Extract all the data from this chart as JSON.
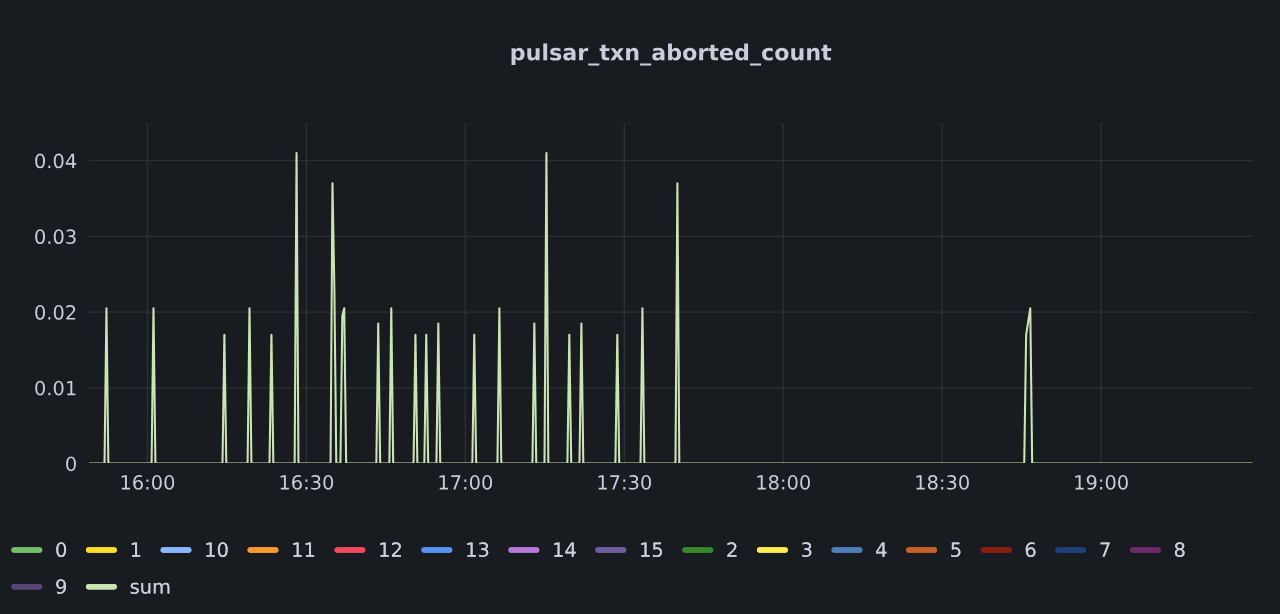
{
  "chart_data": {
    "type": "line",
    "title": "pulsar_txn_aborted_count",
    "x": [
      15.814,
      15.865,
      15.871,
      15.877,
      16.013,
      16.019,
      16.025,
      16.236,
      16.242,
      16.248,
      16.315,
      16.321,
      16.327,
      16.384,
      16.39,
      16.396,
      16.463,
      16.469,
      16.475,
      16.576,
      16.582,
      16.588,
      16.594,
      16.607,
      16.613,
      16.619,
      16.625,
      16.72,
      16.726,
      16.732,
      16.761,
      16.767,
      16.773,
      16.837,
      16.843,
      16.849,
      16.871,
      16.877,
      16.883,
      16.909,
      16.915,
      16.921,
      17.022,
      17.028,
      17.034,
      17.101,
      17.107,
      17.113,
      17.211,
      17.217,
      17.223,
      17.249,
      17.255,
      17.261,
      17.321,
      17.327,
      17.333,
      17.359,
      17.365,
      17.371,
      17.472,
      17.478,
      17.484,
      17.551,
      17.557,
      17.563,
      17.661,
      17.667,
      17.673,
      18.758,
      18.764,
      18.777,
      18.783,
      19.478
    ],
    "series": [
      {
        "name": "0",
        "color": "#73bf69",
        "values": [
          null,
          null,
          null,
          null,
          null,
          null,
          null,
          null,
          null,
          null,
          null,
          null,
          null,
          null,
          null,
          null,
          null,
          null,
          null,
          null,
          null,
          null,
          null,
          null,
          null,
          null,
          null,
          null,
          null,
          null,
          null,
          null,
          null,
          null,
          null,
          null,
          null,
          null,
          null,
          null,
          null,
          null,
          null,
          null,
          null,
          null,
          null,
          null,
          null,
          null,
          null,
          null,
          null,
          null,
          null,
          null,
          null,
          null,
          null,
          null,
          null,
          null,
          null,
          null,
          null,
          null,
          null,
          null,
          null,
          null,
          null,
          null,
          null,
          null
        ]
      },
      {
        "name": "1",
        "color": "#fade2a",
        "values": [
          null,
          null,
          null,
          null,
          null,
          null,
          null,
          null,
          null,
          null,
          null,
          null,
          null,
          null,
          null,
          null,
          null,
          null,
          null,
          null,
          null,
          null,
          null,
          null,
          null,
          null,
          null,
          null,
          null,
          null,
          null,
          null,
          null,
          null,
          null,
          null,
          null,
          null,
          null,
          null,
          null,
          null,
          null,
          null,
          null,
          null,
          null,
          null,
          null,
          null,
          null,
          null,
          null,
          null,
          null,
          null,
          null,
          null,
          null,
          null,
          null,
          null,
          null,
          null,
          null,
          null,
          null,
          null,
          null,
          null,
          null,
          null,
          null,
          null
        ]
      },
      {
        "name": "10",
        "color": "#8ab8ff",
        "values": [
          null,
          null,
          null,
          null,
          null,
          null,
          null,
          null,
          null,
          null,
          null,
          null,
          null,
          null,
          null,
          null,
          null,
          null,
          null,
          null,
          null,
          null,
          null,
          null,
          null,
          null,
          null,
          null,
          null,
          null,
          null,
          null,
          null,
          null,
          null,
          null,
          null,
          null,
          null,
          null,
          null,
          null,
          null,
          null,
          null,
          null,
          null,
          null,
          null,
          null,
          null,
          null,
          null,
          null,
          null,
          null,
          null,
          null,
          null,
          null,
          null,
          null,
          null,
          null,
          null,
          null,
          null,
          null,
          null,
          null,
          null,
          null,
          null,
          null
        ]
      },
      {
        "name": "11",
        "color": "#ff9830",
        "values": [
          null,
          null,
          null,
          null,
          null,
          null,
          null,
          null,
          null,
          null,
          null,
          null,
          null,
          null,
          null,
          null,
          null,
          null,
          null,
          null,
          null,
          null,
          null,
          null,
          null,
          null,
          null,
          null,
          null,
          null,
          null,
          null,
          null,
          null,
          null,
          null,
          null,
          null,
          null,
          null,
          null,
          null,
          null,
          null,
          null,
          null,
          null,
          null,
          null,
          null,
          null,
          null,
          null,
          null,
          null,
          null,
          null,
          null,
          null,
          null,
          null,
          null,
          null,
          null,
          null,
          null,
          null,
          null,
          null,
          null,
          null,
          null,
          null,
          null
        ]
      },
      {
        "name": "12",
        "color": "#f2495c",
        "values": [
          null,
          null,
          null,
          null,
          null,
          null,
          null,
          null,
          null,
          null,
          null,
          null,
          null,
          null,
          null,
          null,
          null,
          null,
          null,
          null,
          null,
          null,
          null,
          null,
          null,
          null,
          null,
          null,
          null,
          null,
          null,
          null,
          null,
          null,
          null,
          null,
          null,
          null,
          null,
          null,
          null,
          null,
          null,
          null,
          null,
          null,
          null,
          null,
          null,
          null,
          null,
          null,
          null,
          null,
          null,
          null,
          null,
          null,
          null,
          null,
          null,
          null,
          null,
          null,
          null,
          null,
          null,
          null,
          null,
          null,
          null,
          null,
          null,
          null
        ]
      },
      {
        "name": "13",
        "color": "#5794f2",
        "values": [
          null,
          null,
          null,
          null,
          null,
          null,
          null,
          null,
          null,
          null,
          null,
          null,
          null,
          null,
          null,
          null,
          null,
          null,
          null,
          null,
          null,
          null,
          null,
          null,
          null,
          null,
          null,
          null,
          null,
          null,
          null,
          null,
          null,
          null,
          null,
          null,
          null,
          null,
          null,
          null,
          null,
          null,
          null,
          null,
          null,
          null,
          null,
          null,
          null,
          null,
          null,
          null,
          null,
          null,
          null,
          null,
          null,
          null,
          null,
          null,
          null,
          null,
          null,
          null,
          null,
          null,
          null,
          null,
          null,
          null,
          null,
          null,
          null,
          null
        ]
      },
      {
        "name": "14",
        "color": "#b877d9",
        "values": [
          null,
          null,
          null,
          null,
          null,
          null,
          null,
          null,
          null,
          null,
          null,
          null,
          null,
          null,
          null,
          null,
          null,
          null,
          null,
          null,
          null,
          null,
          null,
          null,
          null,
          null,
          null,
          null,
          null,
          null,
          null,
          null,
          null,
          null,
          null,
          null,
          null,
          null,
          null,
          null,
          null,
          null,
          null,
          null,
          null,
          null,
          null,
          null,
          null,
          null,
          null,
          null,
          null,
          null,
          null,
          null,
          null,
          null,
          null,
          null,
          null,
          null,
          null,
          null,
          null,
          null,
          null,
          null,
          null,
          null,
          null,
          null,
          null,
          null
        ]
      },
      {
        "name": "15",
        "color": "#705da0",
        "values": [
          null,
          null,
          null,
          null,
          null,
          null,
          null,
          null,
          null,
          null,
          null,
          null,
          null,
          null,
          null,
          null,
          null,
          null,
          null,
          null,
          null,
          null,
          null,
          null,
          null,
          null,
          null,
          null,
          null,
          null,
          null,
          null,
          null,
          null,
          null,
          null,
          null,
          null,
          null,
          null,
          null,
          null,
          null,
          null,
          null,
          null,
          null,
          null,
          null,
          null,
          null,
          null,
          null,
          null,
          null,
          null,
          null,
          null,
          null,
          null,
          null,
          null,
          null,
          null,
          null,
          null,
          null,
          null,
          null,
          null,
          null,
          null,
          null,
          null
        ]
      },
      {
        "name": "2",
        "color": "#37872d",
        "values": [
          null,
          null,
          null,
          null,
          null,
          null,
          null,
          null,
          null,
          null,
          null,
          null,
          null,
          null,
          null,
          null,
          null,
          null,
          null,
          null,
          null,
          null,
          null,
          null,
          null,
          null,
          null,
          null,
          null,
          null,
          null,
          null,
          null,
          null,
          null,
          null,
          null,
          null,
          null,
          null,
          null,
          null,
          null,
          null,
          null,
          null,
          null,
          null,
          null,
          null,
          null,
          null,
          null,
          null,
          null,
          null,
          null,
          null,
          null,
          null,
          null,
          null,
          null,
          null,
          null,
          null,
          null,
          null,
          null,
          null,
          null,
          null,
          null,
          null
        ]
      },
      {
        "name": "3",
        "color": "#ffee52",
        "values": [
          null,
          null,
          null,
          null,
          null,
          null,
          null,
          null,
          null,
          null,
          null,
          null,
          null,
          null,
          null,
          null,
          null,
          null,
          null,
          null,
          null,
          null,
          null,
          null,
          null,
          null,
          null,
          null,
          null,
          null,
          null,
          null,
          null,
          null,
          null,
          null,
          null,
          null,
          null,
          null,
          null,
          null,
          null,
          null,
          null,
          null,
          null,
          null,
          null,
          null,
          null,
          null,
          null,
          null,
          null,
          null,
          null,
          null,
          null,
          null,
          null,
          null,
          null,
          null,
          null,
          null,
          null,
          null,
          null,
          null,
          null,
          null,
          null,
          null
        ]
      },
      {
        "name": "4",
        "color": "#4f7fb8",
        "values": [
          null,
          null,
          null,
          null,
          null,
          null,
          null,
          null,
          null,
          null,
          null,
          null,
          null,
          null,
          null,
          null,
          null,
          null,
          null,
          null,
          null,
          null,
          null,
          null,
          null,
          null,
          null,
          null,
          null,
          null,
          null,
          null,
          null,
          null,
          null,
          null,
          null,
          null,
          null,
          null,
          null,
          null,
          null,
          null,
          null,
          null,
          null,
          null,
          null,
          null,
          null,
          null,
          null,
          null,
          null,
          null,
          null,
          null,
          null,
          null,
          null,
          null,
          null,
          null,
          null,
          null,
          null,
          null,
          null,
          null,
          null,
          null,
          null,
          null
        ]
      },
      {
        "name": "5",
        "color": "#c4612a",
        "values": [
          null,
          null,
          null,
          null,
          null,
          null,
          null,
          null,
          null,
          null,
          null,
          null,
          null,
          null,
          null,
          null,
          null,
          null,
          null,
          null,
          null,
          null,
          null,
          null,
          null,
          null,
          null,
          null,
          null,
          null,
          null,
          null,
          null,
          null,
          null,
          null,
          null,
          null,
          null,
          null,
          null,
          null,
          null,
          null,
          null,
          null,
          null,
          null,
          null,
          null,
          null,
          null,
          null,
          null,
          null,
          null,
          null,
          null,
          null,
          null,
          null,
          null,
          null,
          null,
          null,
          null,
          null,
          null,
          null,
          null,
          null,
          null,
          null,
          null
        ]
      },
      {
        "name": "6",
        "color": "#8a1e12",
        "values": [
          null,
          null,
          null,
          null,
          null,
          null,
          null,
          null,
          null,
          null,
          null,
          null,
          null,
          null,
          null,
          null,
          null,
          null,
          null,
          null,
          null,
          null,
          null,
          null,
          null,
          null,
          null,
          null,
          null,
          null,
          null,
          null,
          null,
          null,
          null,
          null,
          null,
          null,
          null,
          null,
          null,
          null,
          null,
          null,
          null,
          null,
          null,
          null,
          null,
          null,
          null,
          null,
          null,
          null,
          null,
          null,
          null,
          null,
          null,
          null,
          null,
          null,
          null,
          null,
          null,
          null,
          null,
          null,
          null,
          null,
          null,
          null,
          null,
          null
        ]
      },
      {
        "name": "7",
        "color": "#1f3f7a",
        "values": [
          null,
          null,
          null,
          null,
          null,
          null,
          null,
          null,
          null,
          null,
          null,
          null,
          null,
          null,
          null,
          null,
          null,
          null,
          null,
          null,
          null,
          null,
          null,
          null,
          null,
          null,
          null,
          null,
          null,
          null,
          null,
          null,
          null,
          null,
          null,
          null,
          null,
          null,
          null,
          null,
          null,
          null,
          null,
          null,
          null,
          null,
          null,
          null,
          null,
          null,
          null,
          null,
          null,
          null,
          null,
          null,
          null,
          null,
          null,
          null,
          null,
          null,
          null,
          null,
          null,
          null,
          null,
          null,
          null,
          null,
          null,
          null,
          null,
          null
        ]
      },
      {
        "name": "8",
        "color": "#6e2a68",
        "values": [
          null,
          null,
          null,
          null,
          null,
          null,
          null,
          null,
          null,
          null,
          null,
          null,
          null,
          null,
          null,
          null,
          null,
          null,
          null,
          null,
          null,
          null,
          null,
          null,
          null,
          null,
          null,
          null,
          null,
          null,
          null,
          null,
          null,
          null,
          null,
          null,
          null,
          null,
          null,
          null,
          null,
          null,
          null,
          null,
          null,
          null,
          null,
          null,
          null,
          null,
          null,
          null,
          null,
          null,
          null,
          null,
          null,
          null,
          null,
          null,
          null,
          null,
          null,
          null,
          null,
          null,
          null,
          null,
          null,
          null,
          null,
          null,
          null,
          null
        ]
      },
      {
        "name": "9",
        "color": "#584477",
        "values": [
          null,
          null,
          null,
          null,
          null,
          null,
          null,
          null,
          null,
          null,
          null,
          null,
          null,
          null,
          null,
          null,
          null,
          null,
          null,
          null,
          null,
          null,
          null,
          null,
          null,
          null,
          null,
          null,
          null,
          null,
          null,
          null,
          null,
          null,
          null,
          null,
          null,
          null,
          null,
          null,
          null,
          null,
          null,
          null,
          null,
          null,
          null,
          null,
          null,
          null,
          null,
          null,
          null,
          null,
          null,
          null,
          null,
          null,
          null,
          null,
          null,
          null,
          null,
          null,
          null,
          null,
          null,
          null,
          null,
          null,
          null,
          null,
          null,
          null
        ]
      },
      {
        "name": "sum",
        "color": "#c8e6b4",
        "values": [
          0,
          0,
          0.0205,
          0,
          0,
          0.0205,
          0,
          0,
          0.017,
          0,
          0,
          0.0205,
          0,
          0,
          0.017,
          0,
          0,
          0.041,
          0,
          0,
          0.037,
          0.023,
          0,
          0,
          0.0195,
          0.0205,
          0,
          0,
          0.0185,
          0,
          0,
          0.0205,
          0,
          0,
          0.017,
          0,
          0,
          0.017,
          0,
          0,
          0.0185,
          0,
          0,
          0.017,
          0,
          0,
          0.0205,
          0,
          0,
          0.0185,
          0,
          0,
          0.041,
          0,
          0,
          0.017,
          0,
          0,
          0.0185,
          0,
          0,
          0.017,
          0,
          0,
          0.0205,
          0,
          0,
          0.037,
          0,
          0,
          0.017,
          0.0205,
          0,
          0
        ]
      }
    ],
    "xlim": [
      15.814,
      19.478
    ],
    "ylim": [
      0,
      0.045
    ],
    "xticks": [
      {
        "value": 16,
        "label": "16:00"
      },
      {
        "value": 16.5,
        "label": "16:30"
      },
      {
        "value": 17,
        "label": "17:00"
      },
      {
        "value": 17.5,
        "label": "17:30"
      },
      {
        "value": 18,
        "label": "18:00"
      },
      {
        "value": 18.5,
        "label": "18:30"
      },
      {
        "value": 19,
        "label": "19:00"
      }
    ],
    "yticks": [
      0,
      0.01,
      0.02,
      0.03,
      0.04,
      {
        "value": 0.045,
        "label": null
      }
    ],
    "grid": true,
    "legend": "bottom",
    "marker": "none",
    "line_style": "solid"
  }
}
